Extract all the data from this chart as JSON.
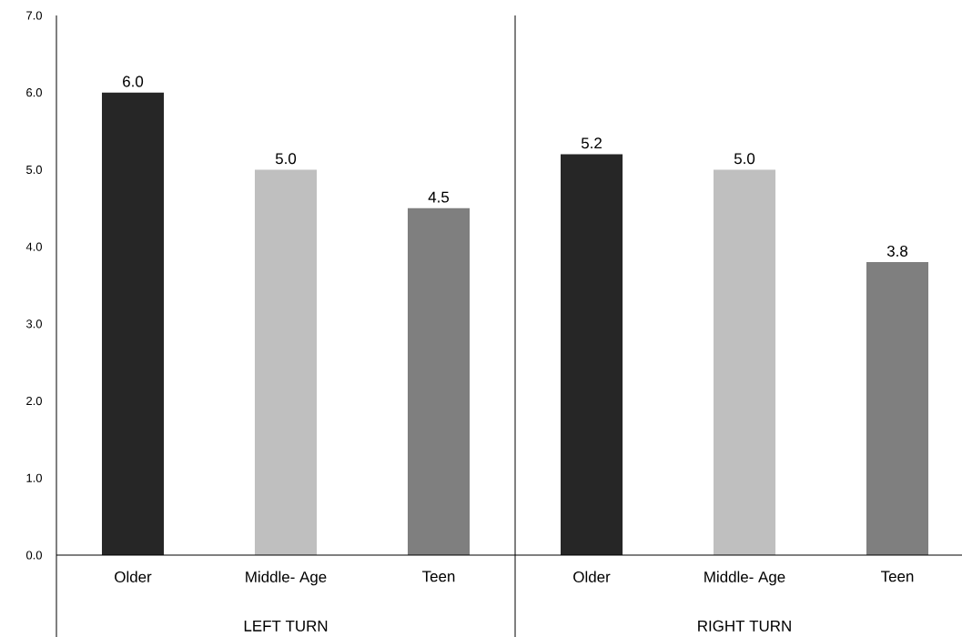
{
  "chart_data": {
    "type": "bar",
    "categories": [
      "Older",
      "Middle- Age",
      "Teen",
      "Older",
      "Middle- Age",
      "Teen"
    ],
    "values": [
      6.0,
      5.0,
      4.5,
      5.2,
      5.0,
      3.8
    ],
    "colors": [
      "#262626",
      "#bfbfbf",
      "#7f7f7f",
      "#262626",
      "#bfbfbf",
      "#7f7f7f"
    ],
    "value_labels": [
      "6.0",
      "5.0",
      "4.5",
      "5.2",
      "5.0",
      "3.8"
    ],
    "ylim": [
      0,
      7
    ],
    "yticks": [
      {
        "value": 0,
        "label": "0.0"
      },
      {
        "value": 1,
        "label": "1.0"
      },
      {
        "value": 2,
        "label": "2.0"
      },
      {
        "value": 3,
        "label": "3.0"
      },
      {
        "value": 4,
        "label": "4.0"
      },
      {
        "value": 5,
        "label": "5.0"
      },
      {
        "value": 6,
        "label": "6.0"
      },
      {
        "value": 7,
        "label": "7.0"
      }
    ],
    "annotations": [
      "LEFT TURN",
      "RIGHT TURN"
    ]
  }
}
